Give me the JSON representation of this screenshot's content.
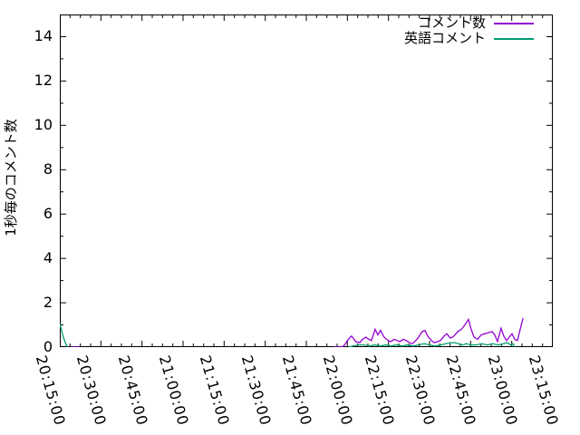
{
  "window": {
    "background": "#ffffff",
    "foreground": "#000000"
  },
  "chart_data": {
    "type": "line",
    "title": "",
    "xlabel": "",
    "ylabel": "1秒毎のコメント数",
    "grid": false,
    "legend_position": "top-right",
    "xlim_minutes": [
      0,
      180
    ],
    "ylim": [
      0,
      15
    ],
    "x_axis_start_time": "20:15:00",
    "x_major_step_minutes": 15,
    "x_minor_step_minutes": 3.75,
    "y_major_step": 2,
    "y_minor_step": 1,
    "x_tick_labels": [
      "20:15:00",
      "20:30:00",
      "20:45:00",
      "21:00:00",
      "21:15:00",
      "21:30:00",
      "21:45:00",
      "22:00:00",
      "22:15:00",
      "22:30:00",
      "22:45:00",
      "23:00:00",
      "23:15:00"
    ],
    "y_tick_labels": [
      "0",
      "2",
      "4",
      "6",
      "8",
      "10",
      "12",
      "14"
    ],
    "series": [
      {
        "name": "コメント数",
        "color": "#9400d3",
        "segments": [
          [
            [
              4,
              0
            ],
            [
              7.3,
              0
            ]
          ],
          [
            [
              100,
              0
            ],
            [
              103,
              0
            ],
            [
              104,
              0.1
            ],
            [
              105,
              0.3
            ],
            [
              106.5,
              0.5
            ],
            [
              108,
              0.25
            ],
            [
              109.5,
              0.2
            ],
            [
              110.5,
              0.35
            ],
            [
              111.8,
              0.45
            ],
            [
              112.8,
              0.35
            ],
            [
              113.8,
              0.3
            ],
            [
              115.1,
              0.8
            ],
            [
              116.1,
              0.55
            ],
            [
              117.1,
              0.75
            ],
            [
              118.4,
              0.45
            ],
            [
              119.8,
              0.3
            ],
            [
              120.8,
              0.25
            ],
            [
              122.1,
              0.35
            ],
            [
              123.1,
              0.3
            ],
            [
              124.1,
              0.25
            ],
            [
              125.4,
              0.35
            ],
            [
              126.4,
              0.3
            ],
            [
              127.7,
              0.2
            ],
            [
              128.7,
              0.15
            ],
            [
              130,
              0.3
            ],
            [
              131,
              0.45
            ],
            [
              132.3,
              0.7
            ],
            [
              133.3,
              0.75
            ],
            [
              134.3,
              0.5
            ],
            [
              135.7,
              0.3
            ],
            [
              136.7,
              0.2
            ],
            [
              138,
              0.25
            ],
            [
              139,
              0.3
            ],
            [
              140.3,
              0.5
            ],
            [
              141.3,
              0.6
            ],
            [
              142.6,
              0.4
            ],
            [
              143.9,
              0.5
            ],
            [
              145.3,
              0.7
            ],
            [
              146.6,
              0.8
            ],
            [
              147.9,
              1.0
            ],
            [
              149.2,
              1.25
            ],
            [
              150.2,
              0.8
            ],
            [
              151.2,
              0.45
            ],
            [
              152.5,
              0.35
            ],
            [
              153.9,
              0.55
            ],
            [
              155.2,
              0.6
            ],
            [
              156.5,
              0.65
            ],
            [
              157.8,
              0.7
            ],
            [
              158.8,
              0.55
            ],
            [
              159.8,
              0.25
            ],
            [
              161.1,
              0.85
            ],
            [
              162.1,
              0.5
            ],
            [
              163.1,
              0.3
            ],
            [
              164.1,
              0.45
            ],
            [
              165.1,
              0.6
            ],
            [
              166.1,
              0.35
            ],
            [
              167.1,
              0.3
            ],
            [
              168.1,
              0.8
            ],
            [
              169.1,
              1.3
            ]
          ]
        ]
      },
      {
        "name": "英語コメント",
        "color": "#009e73",
        "segments": [
          [
            [
              0,
              1.05
            ],
            [
              1.3,
              0.45
            ],
            [
              2.3,
              0.1
            ],
            [
              3,
              0
            ]
          ],
          [
            [
              105.5,
              0
            ],
            [
              107,
              0.05
            ],
            [
              109,
              0.1
            ],
            [
              111,
              0.1
            ],
            [
              113,
              0.05
            ],
            [
              115,
              0.1
            ],
            [
              117,
              0.05
            ],
            [
              119,
              0.1
            ],
            [
              121,
              0.05
            ],
            [
              123,
              0.1
            ],
            [
              125,
              0.05
            ],
            [
              127,
              0.1
            ],
            [
              129,
              0.05
            ],
            [
              131,
              0.1
            ],
            [
              133,
              0.15
            ],
            [
              135,
              0.1
            ],
            [
              137,
              0.05
            ],
            [
              139,
              0.1
            ],
            [
              141,
              0.15
            ],
            [
              142.5,
              0.2
            ],
            [
              144,
              0.2
            ],
            [
              145.5,
              0.15
            ],
            [
              147,
              0.1
            ],
            [
              148.5,
              0.15
            ],
            [
              150,
              0.1
            ],
            [
              152,
              0.1
            ],
            [
              154,
              0.15
            ],
            [
              156,
              0.1
            ],
            [
              158,
              0.15
            ],
            [
              160,
              0.1
            ],
            [
              162,
              0.15
            ],
            [
              163.5,
              0.2
            ],
            [
              164.5,
              0.1
            ],
            [
              165.5,
              0.15
            ],
            [
              166.1,
              0
            ]
          ]
        ]
      }
    ]
  }
}
